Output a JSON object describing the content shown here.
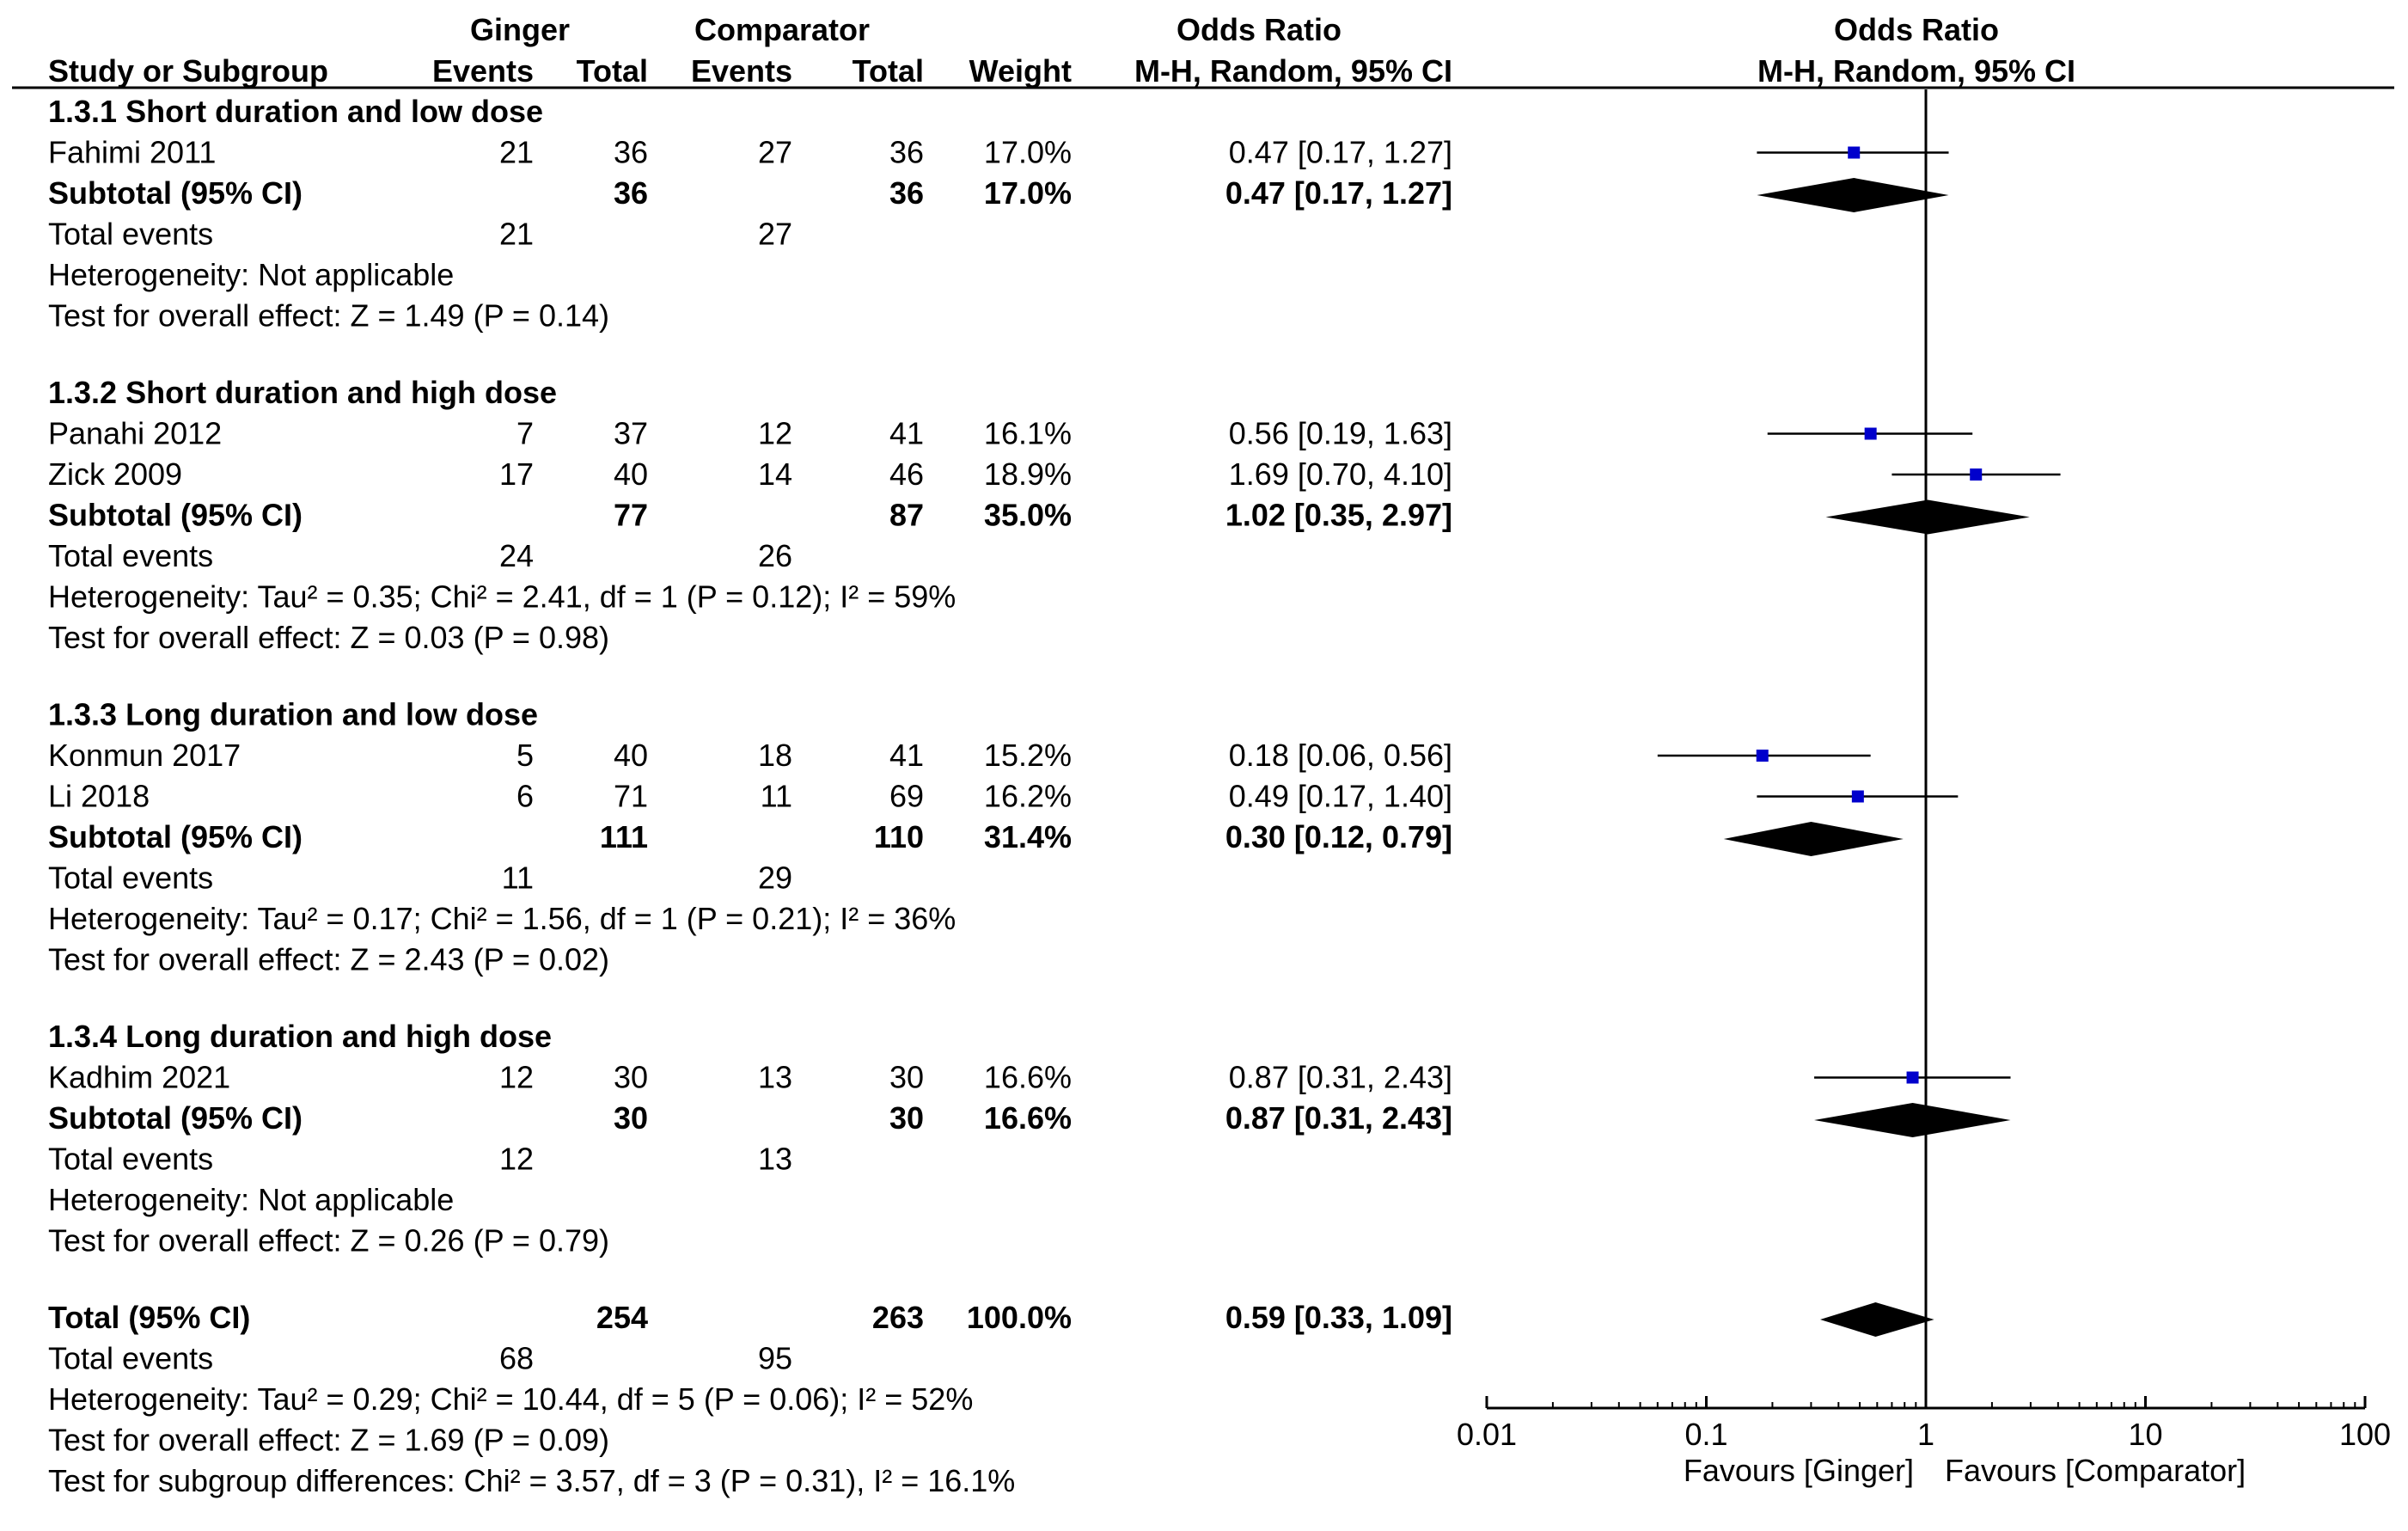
{
  "headers": {
    "study": "Study or Subgroup",
    "ginger_group": "Ginger",
    "comparator_group": "Comparator",
    "events": "Events",
    "total": "Total",
    "weight": "Weight",
    "or_table": "Odds Ratio",
    "or_table_method": "M-H, Random, 95% CI",
    "or_plot": "Odds Ratio",
    "or_plot_method": "M-H, Random, 95% CI"
  },
  "subgroups": [
    {
      "title": "1.3.1 Short duration and low dose",
      "studies": [
        {
          "name": "Fahimi 2011",
          "g_events": "21",
          "g_total": "36",
          "c_events": "27",
          "c_total": "36",
          "weight": "17.0%",
          "ci_text": "0.47 [0.17, 1.27]",
          "or": 0.47,
          "lo": 0.17,
          "hi": 1.27
        }
      ],
      "subtotal": {
        "label": "Subtotal (95% CI)",
        "g_total": "36",
        "c_total": "36",
        "weight": "17.0%",
        "ci_text": "0.47 [0.17, 1.27]",
        "or": 0.47,
        "lo": 0.17,
        "hi": 1.27
      },
      "total_events": {
        "label": "Total events",
        "g": "21",
        "c": "27"
      },
      "heterogeneity": "Heterogeneity: Not applicable",
      "overall": "Test for overall effect: Z = 1.49 (P = 0.14)"
    },
    {
      "title": "1.3.2 Short duration and high dose",
      "studies": [
        {
          "name": "Panahi 2012",
          "g_events": "7",
          "g_total": "37",
          "c_events": "12",
          "c_total": "41",
          "weight": "16.1%",
          "ci_text": "0.56 [0.19, 1.63]",
          "or": 0.56,
          "lo": 0.19,
          "hi": 1.63
        },
        {
          "name": "Zick 2009",
          "g_events": "17",
          "g_total": "40",
          "c_events": "14",
          "c_total": "46",
          "weight": "18.9%",
          "ci_text": "1.69 [0.70, 4.10]",
          "or": 1.69,
          "lo": 0.7,
          "hi": 4.1
        }
      ],
      "subtotal": {
        "label": "Subtotal (95% CI)",
        "g_total": "77",
        "c_total": "87",
        "weight": "35.0%",
        "ci_text": "1.02 [0.35, 2.97]",
        "or": 1.02,
        "lo": 0.35,
        "hi": 2.97
      },
      "total_events": {
        "label": "Total events",
        "g": "24",
        "c": "26"
      },
      "heterogeneity": "Heterogeneity: Tau² = 0.35; Chi² = 2.41, df = 1 (P = 0.12); I² = 59%",
      "overall": "Test for overall effect: Z = 0.03 (P = 0.98)"
    },
    {
      "title": "1.3.3 Long duration and low dose",
      "studies": [
        {
          "name": "Konmun 2017",
          "g_events": "5",
          "g_total": "40",
          "c_events": "18",
          "c_total": "41",
          "weight": "15.2%",
          "ci_text": "0.18 [0.06, 0.56]",
          "or": 0.18,
          "lo": 0.06,
          "hi": 0.56
        },
        {
          "name": "Li 2018",
          "g_events": "6",
          "g_total": "71",
          "c_events": "11",
          "c_total": "69",
          "weight": "16.2%",
          "ci_text": "0.49 [0.17, 1.40]",
          "or": 0.49,
          "lo": 0.17,
          "hi": 1.4
        }
      ],
      "subtotal": {
        "label": "Subtotal (95% CI)",
        "g_total": "111",
        "c_total": "110",
        "weight": "31.4%",
        "ci_text": "0.30 [0.12, 0.79]",
        "or": 0.3,
        "lo": 0.12,
        "hi": 0.79
      },
      "total_events": {
        "label": "Total events",
        "g": "11",
        "c": "29"
      },
      "heterogeneity": "Heterogeneity: Tau² = 0.17; Chi² = 1.56, df = 1 (P = 0.21); I² = 36%",
      "overall": "Test for overall effect: Z = 2.43 (P = 0.02)"
    },
    {
      "title": "1.3.4 Long duration and high dose",
      "studies": [
        {
          "name": "Kadhim 2021",
          "g_events": "12",
          "g_total": "30",
          "c_events": "13",
          "c_total": "30",
          "weight": "16.6%",
          "ci_text": "0.87 [0.31, 2.43]",
          "or": 0.87,
          "lo": 0.31,
          "hi": 2.43
        }
      ],
      "subtotal": {
        "label": "Subtotal (95% CI)",
        "g_total": "30",
        "c_total": "30",
        "weight": "16.6%",
        "ci_text": "0.87 [0.31, 2.43]",
        "or": 0.87,
        "lo": 0.31,
        "hi": 2.43
      },
      "total_events": {
        "label": "Total events",
        "g": "12",
        "c": "13"
      },
      "heterogeneity": "Heterogeneity: Not applicable",
      "overall": "Test for overall effect: Z = 0.26 (P = 0.79)"
    }
  ],
  "overall": {
    "label": "Total (95% CI)",
    "g_total": "254",
    "c_total": "263",
    "weight": "100.0%",
    "ci_text": "0.59 [0.33, 1.09]",
    "or": 0.59,
    "lo": 0.33,
    "hi": 1.09,
    "total_events": {
      "label": "Total events",
      "g": "68",
      "c": "95"
    },
    "heterogeneity": "Heterogeneity: Tau² = 0.29; Chi² = 10.44, df = 5 (P = 0.06); I² = 52%",
    "overall_effect": "Test for overall effect: Z = 1.69 (P = 0.09)",
    "subgroup_diff": "Test for subgroup differences: Chi² = 3.57, df = 3 (P = 0.31), I² = 16.1%"
  },
  "colors": {
    "marker": "#0000cc",
    "line": "#000000",
    "diamond": "#000000"
  },
  "chart_data": {
    "type": "forest",
    "title": "Odds Ratio M-H, Random, 95% CI",
    "scale": "log",
    "xlim": [
      0.01,
      100
    ],
    "ticks": [
      0.01,
      0.1,
      1,
      10,
      100
    ],
    "tick_labels": [
      "0.01",
      "0.1",
      "1",
      "10",
      "100"
    ],
    "null_value": 1,
    "favours_left": "Favours [Ginger]",
    "favours_right": "Favours [Comparator]",
    "series": [
      {
        "name": "Fahimi 2011",
        "or": 0.47,
        "lo": 0.17,
        "hi": 1.27
      },
      {
        "name": "Subtotal 1.3.1",
        "or": 0.47,
        "lo": 0.17,
        "hi": 1.27
      },
      {
        "name": "Panahi 2012",
        "or": 0.56,
        "lo": 0.19,
        "hi": 1.63
      },
      {
        "name": "Zick 2009",
        "or": 1.69,
        "lo": 0.7,
        "hi": 4.1
      },
      {
        "name": "Subtotal 1.3.2",
        "or": 1.02,
        "lo": 0.35,
        "hi": 2.97
      },
      {
        "name": "Konmun 2017",
        "or": 0.18,
        "lo": 0.06,
        "hi": 0.56
      },
      {
        "name": "Li 2018",
        "or": 0.49,
        "lo": 0.17,
        "hi": 1.4
      },
      {
        "name": "Subtotal 1.3.3",
        "or": 0.3,
        "lo": 0.12,
        "hi": 0.79
      },
      {
        "name": "Kadhim 2021",
        "or": 0.87,
        "lo": 0.31,
        "hi": 2.43
      },
      {
        "name": "Subtotal 1.3.4",
        "or": 0.87,
        "lo": 0.31,
        "hi": 2.43
      },
      {
        "name": "Total",
        "or": 0.59,
        "lo": 0.33,
        "hi": 1.09
      }
    ]
  }
}
